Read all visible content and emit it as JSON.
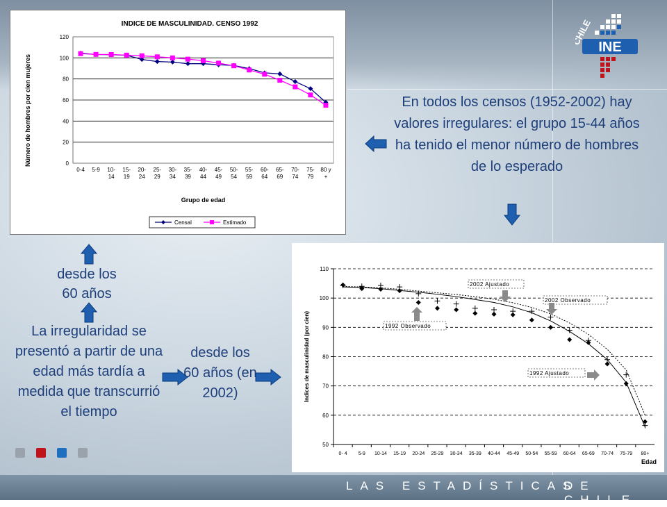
{
  "footer": {
    "left": "LAS ESTADÍSTICAS",
    "right": "DE CHILE"
  },
  "logo": {
    "word": "CHILE",
    "abbrev": "INE"
  },
  "texts": {
    "top_right": "En todos los censos (1952-2002) hay valores irregulares:  el grupo 15-44 años  ha tenido el menor número de hombres de lo esperado",
    "left_desde": "desde los 60 años",
    "left_irreg": "La irregularidad se presentó a partir de una edad más tardía a medida que transcurrió el tiempo",
    "middle_desde": "desde los 60 años (en 2002)"
  },
  "colors": {
    "text_blue": "#1e3f7a",
    "arrow_blue": "#1f5fb0",
    "censal": "#000080",
    "estimado": "#ff00ff"
  },
  "chart_data": [
    {
      "type": "line",
      "title": "INDICE DE MASCULINIDAD. CENSO 1992",
      "xlabel": "Grupo de edad",
      "ylabel": "Número de hombres por cien mujeres",
      "ylim": [
        0,
        120
      ],
      "yticks": [
        0,
        20,
        40,
        60,
        80,
        100,
        120
      ],
      "categories": [
        "0-4",
        "5-9",
        "10-14",
        "15-19",
        "20-24",
        "25-29",
        "30-34",
        "35-39",
        "40-44",
        "45-49",
        "50-54",
        "55-59",
        "60-64",
        "65-69",
        "70-74",
        "75-79",
        "80 y +"
      ],
      "tick_lines": [
        [
          "0-4"
        ],
        [
          "5-9"
        ],
        [
          "10-",
          "14"
        ],
        [
          "15-",
          "19"
        ],
        [
          "20-",
          "24"
        ],
        [
          "25-",
          "29"
        ],
        [
          "30-",
          "34"
        ],
        [
          "35-",
          "39"
        ],
        [
          "40-",
          "44"
        ],
        [
          "45-",
          "49"
        ],
        [
          "50-",
          "54"
        ],
        [
          "55-",
          "59"
        ],
        [
          "60-",
          "64"
        ],
        [
          "65-",
          "69"
        ],
        [
          "70-",
          "74"
        ],
        [
          "75-",
          "79"
        ],
        [
          "80 y",
          "+"
        ]
      ],
      "series": [
        {
          "name": "Censal",
          "values": [
            104.5,
            103.2,
            103.0,
            102.5,
            98.5,
            96.5,
            96.0,
            94.5,
            94.5,
            93.5,
            92.8,
            89.8,
            85.8,
            84.8,
            77.5,
            70.8,
            57.8
          ]
        },
        {
          "name": "Estimado",
          "values": [
            104.0,
            103.3,
            103.2,
            102.6,
            102.0,
            101.0,
            100.0,
            98.8,
            97.3,
            95.0,
            92.5,
            88.5,
            84.5,
            78.8,
            72.5,
            64.8,
            55.0
          ]
        }
      ],
      "legend": "bottom",
      "grid": true
    },
    {
      "type": "line",
      "xlabel": "Edad",
      "ylabel": "Indices de masculinidad (por cien)",
      "ylim": [
        50,
        110
      ],
      "yticks": [
        50,
        60,
        70,
        80,
        90,
        100,
        110
      ],
      "categories": [
        "0- 4",
        "5-9",
        "10-14",
        "15-19",
        "20-24",
        "25-29",
        "30-34",
        "35-39",
        "40-44",
        "45-49",
        "50-54",
        "55-59",
        "60-64",
        "65-69",
        "70-74",
        "75-79",
        "80+"
      ],
      "series": [
        {
          "name": "1992 Observado",
          "values": [
            104.5,
            103.2,
            103.0,
            102.5,
            98.5,
            96.5,
            96.0,
            94.8,
            94.5,
            94.3,
            92.5,
            90.0,
            85.8,
            84.8,
            77.5,
            70.8,
            57.8
          ]
        },
        {
          "name": "1992 Ajustado",
          "values": [
            103.8,
            103.6,
            103.2,
            102.6,
            102.0,
            101.3,
            100.5,
            99.5,
            98.5,
            97.0,
            95.0,
            92.2,
            88.6,
            84.4,
            79.0,
            71.2,
            56.0
          ]
        },
        {
          "name": "2002 Observado",
          "values": [
            104.3,
            104.0,
            104.3,
            103.8,
            101.5,
            99.0,
            98.0,
            96.5,
            96.0,
            95.5,
            95.5,
            93.5,
            89.0,
            85.5,
            79.0,
            73.8,
            56.5
          ]
        },
        {
          "name": "2002 Ajustado",
          "values": [
            104.0,
            103.8,
            103.5,
            103.0,
            102.4,
            101.8,
            101.2,
            100.5,
            99.6,
            98.4,
            96.8,
            94.6,
            91.5,
            87.6,
            82.5,
            75.5,
            60.0
          ]
        }
      ],
      "annotations": [
        "2002 Ajustado",
        "2002 Observado",
        "1992 Observado",
        "1992 Ajustado"
      ],
      "grid": true
    }
  ]
}
